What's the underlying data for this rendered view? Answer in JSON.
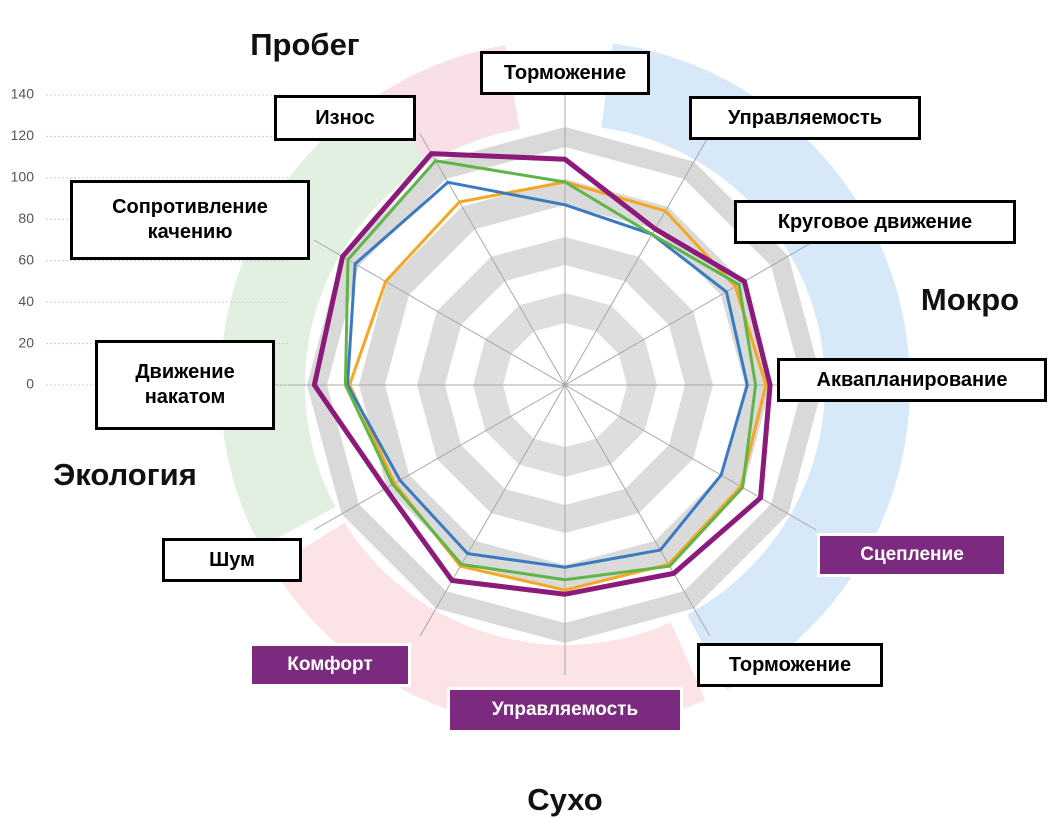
{
  "chart_data": {
    "type": "radar",
    "categories": [
      "Торможение",
      "Управляемость",
      "Круговое движение",
      "Аквапланирование",
      "Сцепление",
      "Торможение",
      "Управляемость",
      "Комфорт",
      "Шум",
      "Движение накатом",
      "Сопротивление качению",
      "Износ"
    ],
    "label_fill": [
      "#ffffff",
      "#ffffff",
      "#ffffff",
      "#ffffff",
      "#7b2a7f",
      "#ffffff",
      "#7b2a7f",
      "#7b2a7f",
      "#ffffff",
      "#ffffff",
      "#ffffff",
      "#ffffff"
    ],
    "group_labels": [
      "Пробег",
      "Мокро",
      "Сухо",
      "Экология"
    ],
    "series": [
      {
        "color": "#f5a623",
        "values": [
          98,
          97,
          95,
          97,
          98,
          100,
          99,
          101,
          95,
          104,
          100,
          102
        ]
      },
      {
        "color": "#3a7bc0",
        "values": [
          87,
          84,
          90,
          88,
          87,
          92,
          88,
          94,
          92,
          105,
          117,
          113
        ]
      },
      {
        "color": "#5fb548",
        "values": [
          98,
          84,
          97,
          92,
          99,
          101,
          94,
          100,
          96,
          106,
          121,
          125
        ]
      },
      {
        "color": "#8b1a7a",
        "values": [
          109,
          87,
          100,
          99,
          109,
          105,
          101,
          109,
          100,
          121,
          124,
          129
        ]
      }
    ],
    "ylim": [
      0,
      140
    ],
    "yticks": [
      0,
      20,
      40,
      60,
      80,
      100,
      120,
      140
    ]
  }
}
